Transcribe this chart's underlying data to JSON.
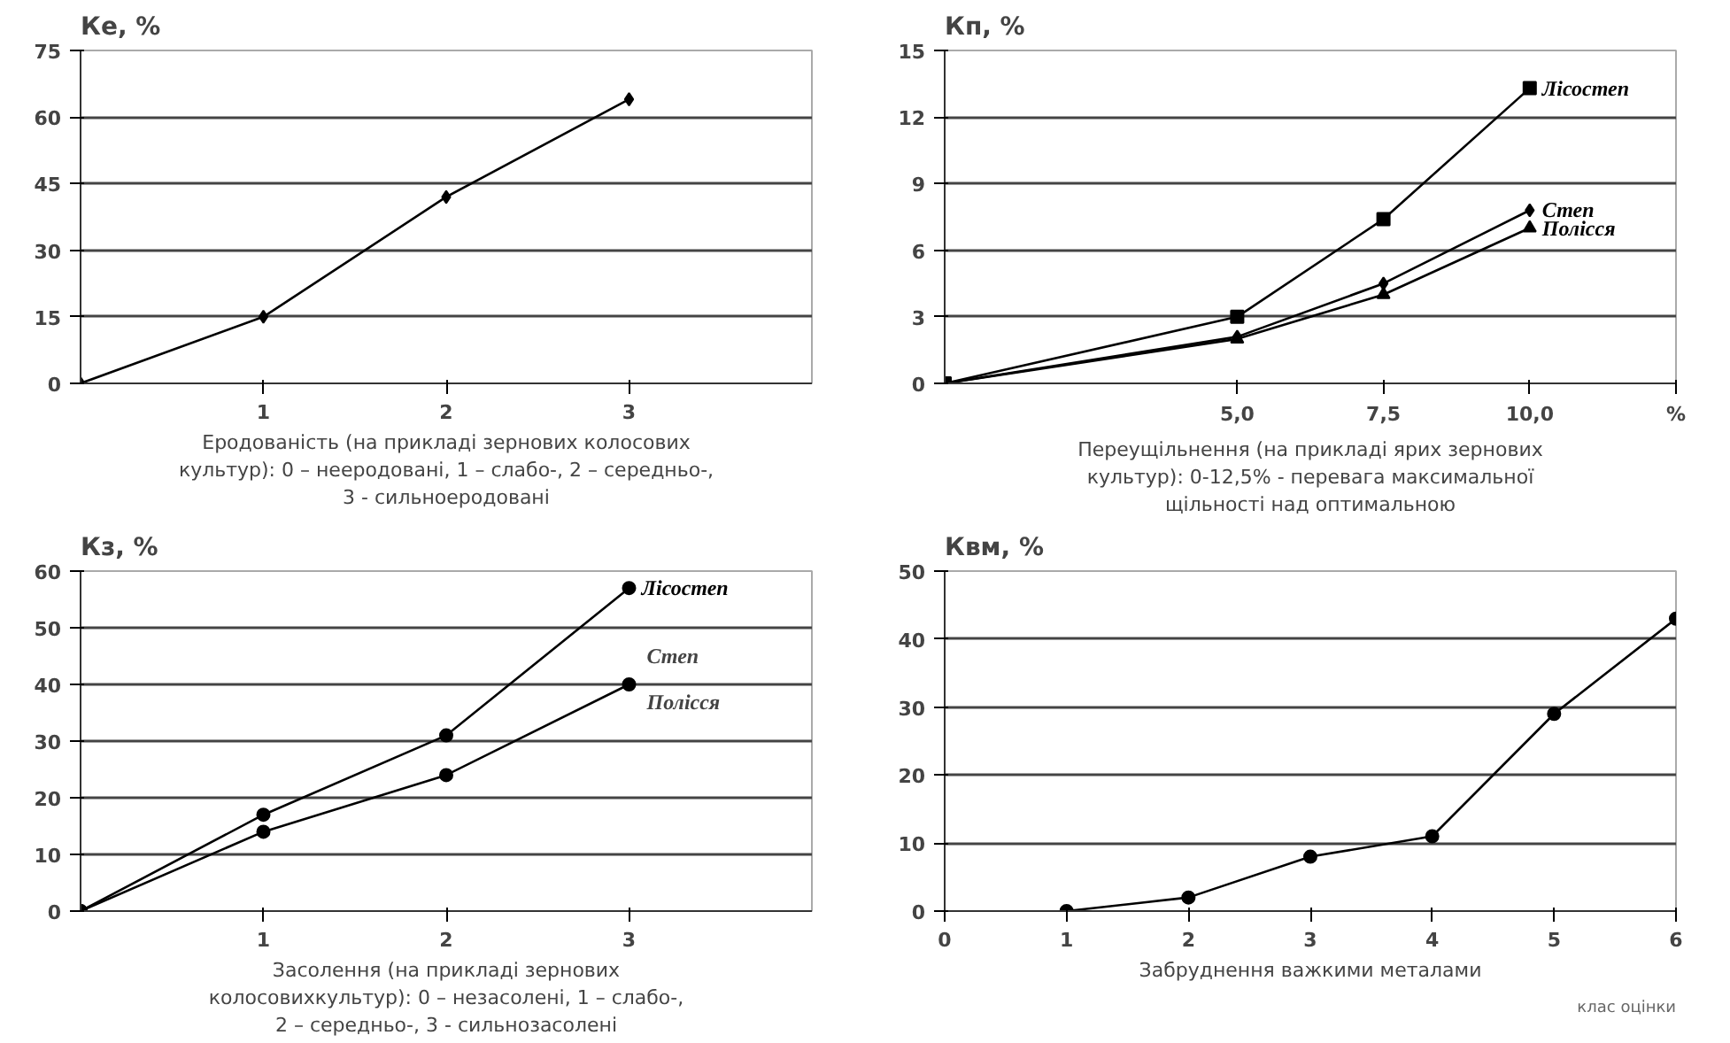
{
  "chart_data": [
    {
      "type": "line",
      "ylabel": "Ке, %",
      "xlabel": "Еродованість (на прикладі зернових колосових\nкультур): 0 – нееродовані, 1 – слабо-, 2 – середньо-,\n3 - сильноеродовані",
      "x": [
        0,
        1,
        2,
        3
      ],
      "xlim": [
        0,
        4
      ],
      "xticks": [
        1,
        2,
        3
      ],
      "ylim": [
        0,
        75
      ],
      "yticks": [
        0,
        15,
        30,
        45,
        60,
        75
      ],
      "grid": "y",
      "marker": "diamond",
      "series": [
        {
          "color": "#000000",
          "values": [
            0,
            15,
            42,
            64
          ]
        }
      ]
    },
    {
      "type": "line",
      "ylabel": "Кп, %",
      "xlabel": "Переущільнення (на прикладі ярих зернових\nкультур): 0-12,5% - перевага максимальної\nщільності над оптимальною",
      "x": [
        0,
        5,
        7.5,
        10
      ],
      "xlim": [
        0,
        12.5
      ],
      "xticks": [
        {
          "value": 5,
          "label": "5,0"
        },
        {
          "value": 7.5,
          "label": "7,5"
        },
        {
          "value": 10,
          "label": "10,0"
        },
        {
          "value": 12.5,
          "label": "%"
        }
      ],
      "ylim": [
        0,
        15
      ],
      "yticks": [
        0,
        3,
        6,
        9,
        12,
        15
      ],
      "grid": "y",
      "marker": "circle",
      "series": [
        {
          "name": "Лісостеп",
          "color": "#000000",
          "marker": "square",
          "values": [
            0,
            3,
            7.4,
            13.3
          ]
        },
        {
          "name": "Степ",
          "color": "#000000",
          "marker": "diamond",
          "values": [
            0,
            2.1,
            4.5,
            7.8
          ]
        },
        {
          "name": "Полісся",
          "color": "#000000",
          "marker": "triangle",
          "values": [
            0,
            2.0,
            4.0,
            7.0
          ]
        }
      ]
    },
    {
      "type": "line",
      "ylabel": "Кз, %",
      "xlabel": "Засолення (на прикладі зернових\nколосовихкультур): 0 – незасолені, 1 – слабо-,\n2 – середньо-, 3 - сильнозасолені",
      "x": [
        0,
        1,
        2,
        3
      ],
      "xlim": [
        0,
        4
      ],
      "xticks": [
        1,
        2,
        3
      ],
      "ylim": [
        0,
        60
      ],
      "yticks": [
        0,
        10,
        20,
        30,
        40,
        50,
        60
      ],
      "grid": "y",
      "marker": "circle",
      "series": [
        {
          "name": "Лісостеп",
          "color": "#000000",
          "values": [
            0,
            17,
            31,
            57
          ]
        },
        {
          "color": "#000000",
          "values": [
            0,
            14,
            24,
            40
          ]
        }
      ],
      "annotations": [
        "Степ",
        "Полісся"
      ]
    },
    {
      "type": "line",
      "ylabel": "Квм, %",
      "xlabel": "Забруднення важкими металами",
      "x": [
        1,
        2,
        3,
        4,
        5,
        6
      ],
      "xlim": [
        0,
        6
      ],
      "xticks": [
        0,
        1,
        2,
        3,
        4,
        5,
        6
      ],
      "ylim": [
        0,
        50
      ],
      "yticks": [
        0,
        10,
        20,
        30,
        40,
        50
      ],
      "grid": "y",
      "marker": "circle",
      "series": [
        {
          "color": "#000000",
          "values": [
            0,
            2,
            8,
            11,
            29,
            43
          ]
        }
      ],
      "annotations": [
        "клас оцінки"
      ]
    }
  ]
}
